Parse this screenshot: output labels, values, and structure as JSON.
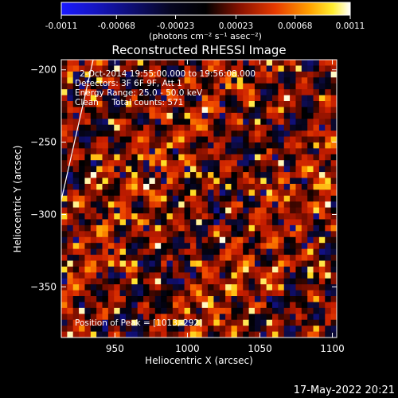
{
  "colorbar": {
    "tick_labels": [
      "-0.0011",
      "-0.00068",
      "-0.00023",
      "0.00023",
      "0.00068",
      "0.0011"
    ],
    "min": -0.0011,
    "max": 0.0011,
    "unit_text": "(photons cm⁻² s⁻¹ asec⁻²)"
  },
  "chart_data": {
    "type": "heatmap",
    "title": "Reconstructed RHESSI Image",
    "xlabel": "Heliocentric X (arcsec)",
    "ylabel": "Heliocentric Y (arcsec)",
    "xlim": [
      913,
      1103
    ],
    "ylim": [
      -385,
      -193
    ],
    "x_ticks": [
      950,
      1000,
      1050,
      1100
    ],
    "x_tick_labels": [
      "950",
      "1000",
      "1050",
      "1100"
    ],
    "y_ticks": [
      -200,
      -250,
      -300,
      -350
    ],
    "y_tick_labels": [
      "−200",
      "−250",
      "−300",
      "−350"
    ],
    "peak": [
      1013,
      -292
    ],
    "limb_line": [
      [
        913,
        -290
      ],
      [
        935,
        -193
      ]
    ],
    "colormap": "blue-black-red-yellow-white",
    "annotations": [
      "2-Oct-2014 19:55:00.000 to 19:56:08.000",
      "Detectors: 3F 6F 9F, Att 1",
      "Energy Range: 25.0 - 50.0 keV",
      "Clean     Total counts: 571",
      "Position of Peak = [1013,-292]"
    ]
  },
  "timestamp": "17-May-2022 20:21",
  "colors": {
    "background": "#000000",
    "foreground": "#ffffff"
  }
}
